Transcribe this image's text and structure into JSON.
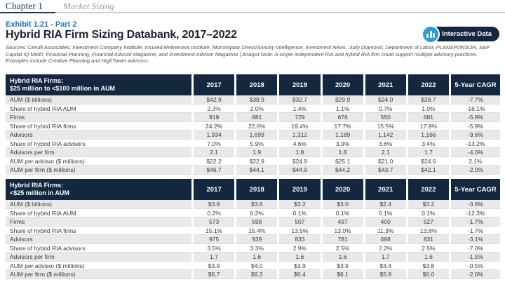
{
  "page": {
    "chapter_label": "Chapter 1",
    "chapter_title": "Market Sizing",
    "exhibit_label": "Exhibit 1.21 - Part 2",
    "title": "Hybrid RIA Firm Sizing Databank, 2017–2022",
    "sources_note": "Sources: Cerulli Associates, Investment Company Institute, Insured Retirement Institute, Morningstar Direct/Annuity Intelligence, Investment News, Judy Diamond, Department of Labor, PLANSPONSOR, S&P Capital IQ MMD, Financial Planning, Financial Advisor Magazine, and Investment Advisor Magazine  |  Analyst Note: A single independent RIA and hybrid RIA firm could support multiple advisory practices. Examples include Creative Planning and HighTower Advisors.",
    "interactive_button_label": "Interactive Data"
  },
  "colors": {
    "header_navy": "#13273f",
    "accent_blue": "#1b75bb",
    "button_circle_blue": "#2d9bd5",
    "row_stripe_gray": "#e9e9e9",
    "chapter_navy": "#1d3a57"
  },
  "icons": {
    "interactive_button_icon": "bar-chart-icon"
  },
  "tables": [
    {
      "title_line1": "Hybrid RIA Firms:",
      "title_line2": "$25 million to <$100 million in AUM",
      "columns": [
        "2017",
        "2018",
        "2019",
        "2020",
        "2021",
        "2022",
        "5-Year CAGR"
      ],
      "rows": [
        {
          "label": "AUM ($ billions)",
          "values": [
            "$42.9",
            "$38.9",
            "$32.7",
            "$29.9",
            "$24.0",
            "$28.7",
            "-7.7%"
          ]
        },
        {
          "label": "Share of hybrid RIA AUM",
          "values": [
            "2.3%",
            "2.0%",
            "1.4%",
            "1.1%",
            "0.7%",
            "1.0%",
            "-16.1%"
          ]
        },
        {
          "label": "Firms",
          "values": [
            "919",
            "881",
            "729",
            "676",
            "550",
            "681",
            "-5.8%"
          ]
        },
        {
          "label": "Share of hybrid RIA firms",
          "values": [
            "24.2%",
            "22.6%",
            "19.4%",
            "17.7%",
            "15.5%",
            "17.9%",
            "-5.9%"
          ]
        },
        {
          "label": "Advisors",
          "values": [
            "1,934",
            "1,699",
            "1,312",
            "1,189",
            "1,142",
            "1,166",
            "-9.6%"
          ]
        },
        {
          "label": "Share of hybrid RIA advisors",
          "values": [
            "7.0%",
            "5.9%",
            "4.6%",
            "3.9%",
            "3.6%",
            "3.4%",
            "-13.2%"
          ]
        },
        {
          "label": "Advisors per firm",
          "values": [
            "2.1",
            "1.9",
            "1.8",
            "1.8",
            "2.1",
            "1.7",
            "-4.0%"
          ]
        },
        {
          "label": "AUM per advisor ($ millions)",
          "values": [
            "$22.2",
            "$22.9",
            "$24.9",
            "$25.1",
            "$21.0",
            "$24.6",
            "2.1%"
          ]
        },
        {
          "label": "AUM per firm ($ millions)",
          "values": [
            "$46.7",
            "$44.1",
            "$44.9",
            "$44.2",
            "$43.7",
            "$42.1",
            "-2.0%"
          ]
        }
      ]
    },
    {
      "title_line1": "Hybrid RIA Firms:",
      "title_line2": "<$25 million in AUM",
      "columns": [
        "2017",
        "2018",
        "2019",
        "2020",
        "2021",
        "2022",
        "5-Year CAGR"
      ],
      "rows": [
        {
          "label": "AUM ($ billions)",
          "values": [
            "$3.8",
            "$3.8",
            "$3.2",
            "$3.0",
            "$2.4",
            "$3.2",
            "-3.6%"
          ]
        },
        {
          "label": "Share of hybrid RIA AUM",
          "values": [
            "0.2%",
            "0.2%",
            "0.1%",
            "0.1%",
            "0.1%",
            "0.1%",
            "-12.3%"
          ]
        },
        {
          "label": "Firms",
          "values": [
            "573",
            "598",
            "507",
            "497",
            "400",
            "527",
            "-1.7%"
          ]
        },
        {
          "label": "Share of hybrid RIA firms",
          "values": [
            "15.1%",
            "15.4%",
            "13.5%",
            "13.0%",
            "11.3%",
            "13.8%",
            "-1.7%"
          ]
        },
        {
          "label": "Advisors",
          "values": [
            "975",
            "939",
            "833",
            "781",
            "688",
            "831",
            "-3.1%"
          ]
        },
        {
          "label": "Share of hybrid RIA advisors",
          "values": [
            "3.5%",
            "3.3%",
            "2.9%",
            "2.5%",
            "2.2%",
            "2.5%",
            "-7.0%"
          ]
        },
        {
          "label": "Advisors per firm",
          "values": [
            "1.7",
            "1.6",
            "1.6",
            "1.6",
            "1.7",
            "1.6",
            "-1.5%"
          ]
        },
        {
          "label": "AUM per advisor ($ millions)",
          "values": [
            "$3.9",
            "$4.0",
            "$3.9",
            "$3.9",
            "$3.4",
            "$3.8",
            "-0.5%"
          ]
        },
        {
          "label": "AUM per firm ($ millions)",
          "values": [
            "$6.7",
            "$6.3",
            "$6.4",
            "$6.1",
            "$5.9",
            "$6.0",
            "-2.0%"
          ]
        }
      ]
    }
  ]
}
